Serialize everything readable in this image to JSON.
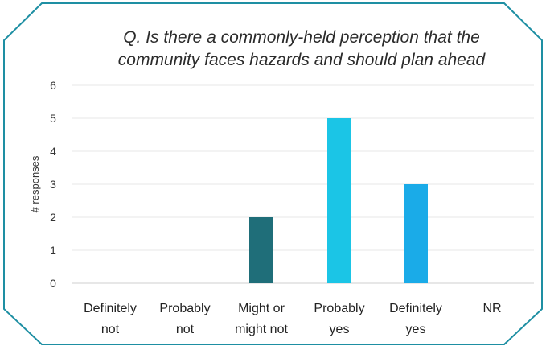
{
  "chart_data": {
    "type": "bar",
    "title_lines": [
      "Q. Is there a commonly-held perception that the",
      "community faces hazards and should plan ahead"
    ],
    "ylabel": "# responses",
    "xlabel": "",
    "ylim": [
      0,
      6
    ],
    "yticks": [
      "0",
      "1",
      "2",
      "3",
      "4",
      "5",
      "6"
    ],
    "grid": true,
    "categories": [
      [
        "Definitely",
        "not"
      ],
      [
        "Probably",
        "not"
      ],
      [
        "Might or",
        "might not"
      ],
      [
        "Probably",
        "yes"
      ],
      [
        "Definitely",
        "yes"
      ],
      [
        "NR"
      ]
    ],
    "values": [
      0,
      0,
      2,
      5,
      3,
      0
    ],
    "bar_colors": [
      "#1f6e79",
      "#1f6e79",
      "#1f6e79",
      "#1bc5e6",
      "#1aabe8",
      "#1aabe8"
    ]
  },
  "colors": {
    "frame": "#1e8fa3",
    "grid": "#e7e7e7",
    "baseline": "#cfcfcf"
  }
}
